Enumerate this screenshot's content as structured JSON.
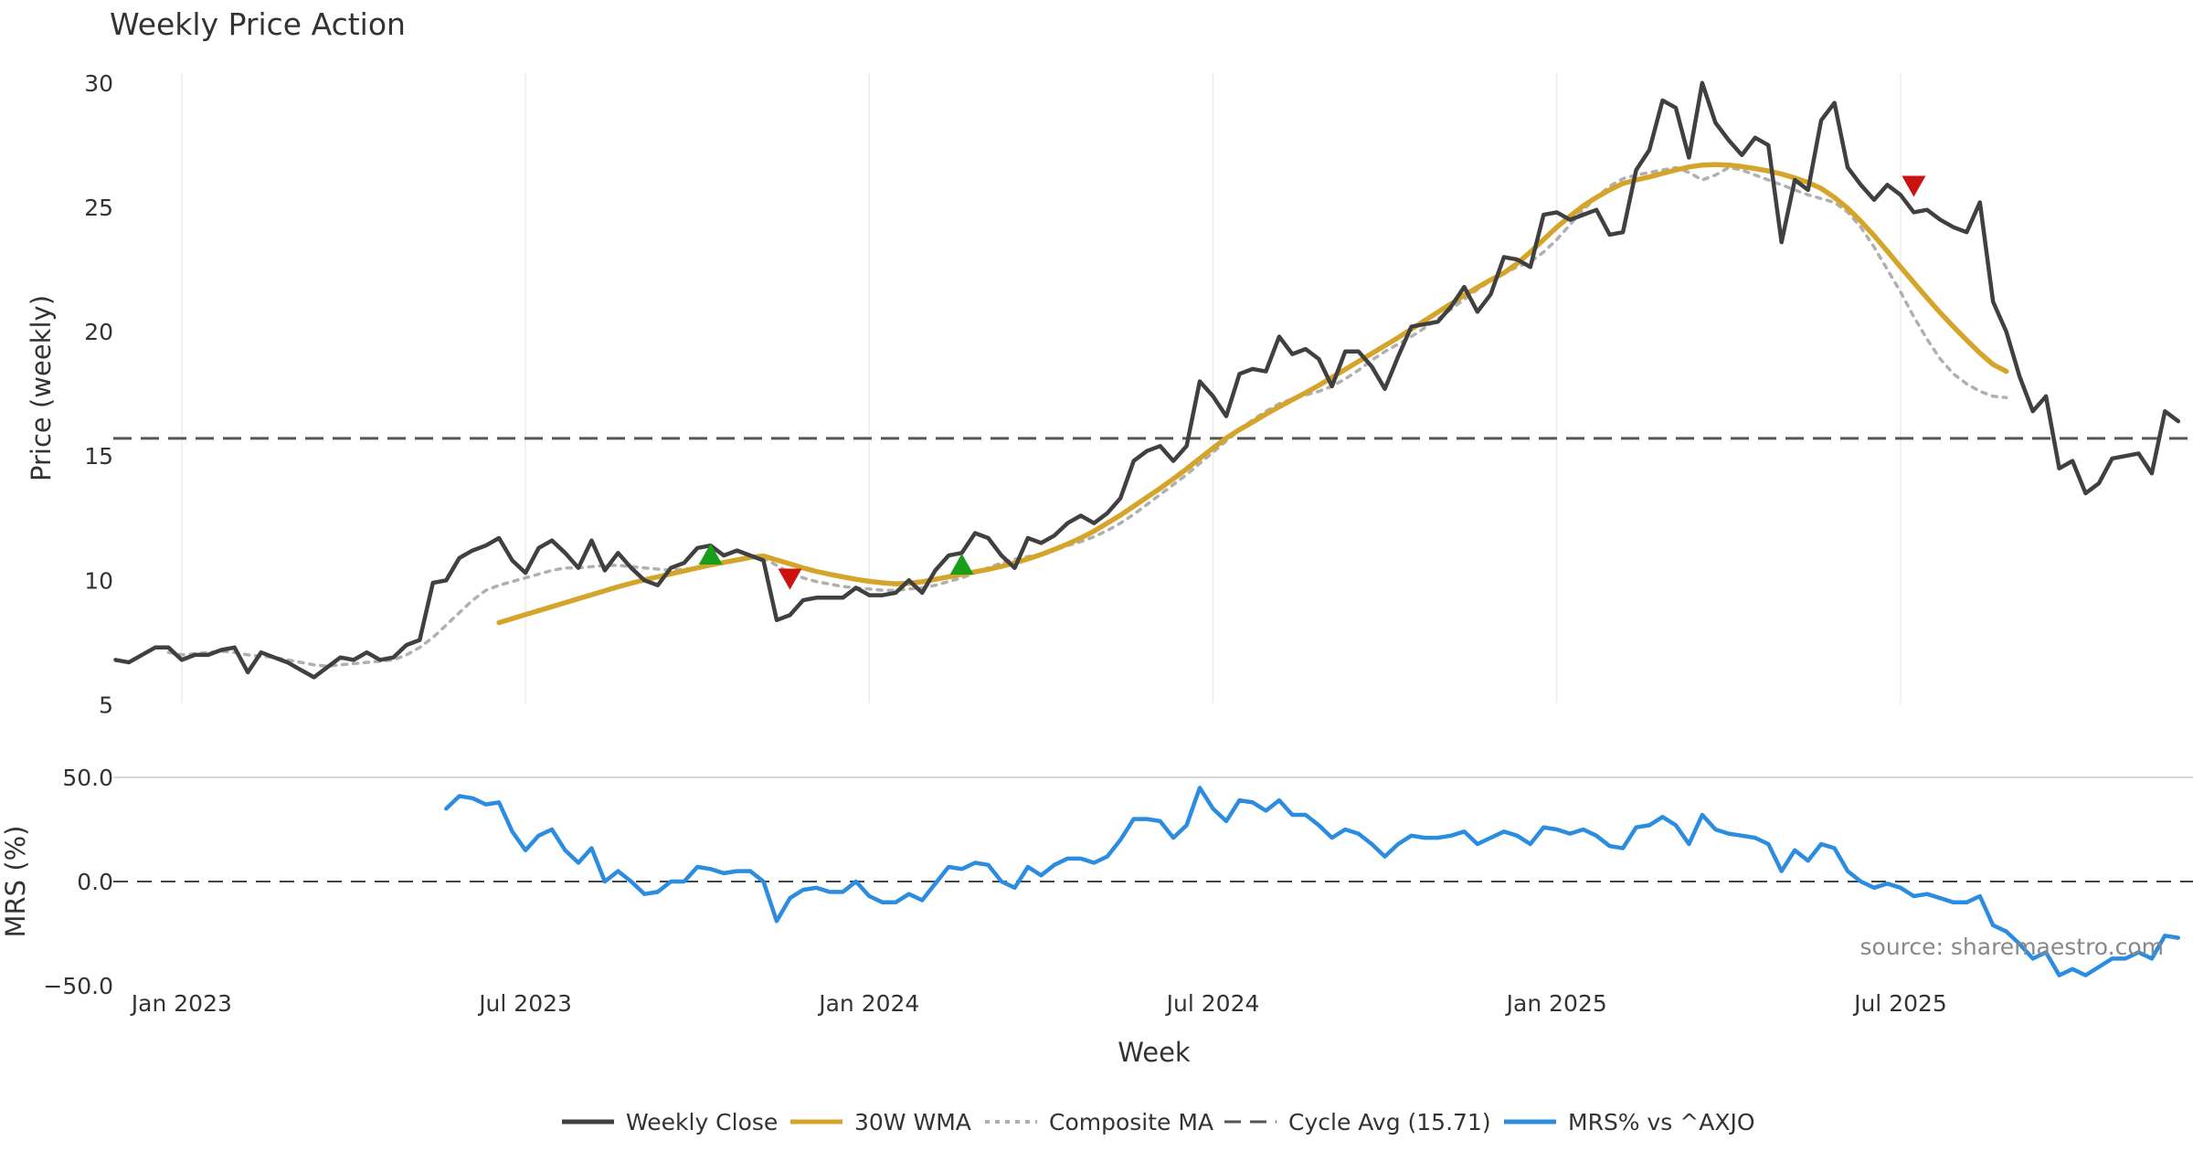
{
  "chart_data": {
    "type": "line",
    "title": "Weekly Price Action",
    "xlabel": "Week",
    "source": "source: sharemaestro.com",
    "x_ticks": [
      "Jan 2023",
      "Jul 2023",
      "Jan 2024",
      "Jul 2024",
      "Jan 2025",
      "Jul 2025"
    ],
    "x_tick_index": [
      5,
      31,
      57,
      83,
      109,
      135
    ],
    "price_panel": {
      "ylabel": "Price (weekly)",
      "ylim": [
        4.5,
        31.5
      ],
      "y_ticks": [
        "5",
        "10",
        "15",
        "20",
        "25",
        "30"
      ],
      "y_tick_values": [
        5,
        10,
        15,
        20,
        25,
        30
      ],
      "cycle_avg": 15.71,
      "series": [
        {
          "name": "Weekly Close",
          "color": "#404040",
          "start": 0,
          "values": [
            6.8,
            6.7,
            7.0,
            7.3,
            7.3,
            6.8,
            7.0,
            7.0,
            7.2,
            7.3,
            6.3,
            7.1,
            6.9,
            6.7,
            6.4,
            6.1,
            6.5,
            6.9,
            6.8,
            7.1,
            6.8,
            6.9,
            7.4,
            7.6,
            9.9,
            10.0,
            10.9,
            11.2,
            11.4,
            11.7,
            10.8,
            10.3,
            11.3,
            11.6,
            11.1,
            10.5,
            11.6,
            10.4,
            11.1,
            10.5,
            10.0,
            9.8,
            10.5,
            10.7,
            11.3,
            11.4,
            11.0,
            11.2,
            11.0,
            10.8,
            8.4,
            8.6,
            9.2,
            9.3,
            9.3,
            9.3,
            9.7,
            9.4,
            9.4,
            9.5,
            10.0,
            9.5,
            10.4,
            11.0,
            11.1,
            11.9,
            11.7,
            11.0,
            10.5,
            11.7,
            11.5,
            11.8,
            12.3,
            12.6,
            12.3,
            12.7,
            13.3,
            14.8,
            15.2,
            15.4,
            14.8,
            15.4,
            18.0,
            17.4,
            16.6,
            18.3,
            18.5,
            18.4,
            19.8,
            19.1,
            19.3,
            18.9,
            17.8,
            19.2,
            19.2,
            18.6,
            17.7,
            19.0,
            20.2,
            20.3,
            20.4,
            21.0,
            21.8,
            20.8,
            21.5,
            23.0,
            22.9,
            22.6,
            24.7,
            24.8,
            24.5,
            24.7,
            24.9,
            23.9,
            24.0,
            26.5,
            27.3,
            29.3,
            29.0,
            27.0,
            30.0,
            28.4,
            27.7,
            27.1,
            27.8,
            27.5,
            23.6,
            26.1,
            25.7,
            28.5,
            29.2,
            26.6,
            25.9,
            25.3,
            25.9,
            25.5,
            24.8,
            24.9,
            24.5,
            24.2,
            24.0,
            25.2,
            21.2,
            20.0,
            18.2,
            16.8,
            17.4,
            14.5,
            14.8,
            13.5,
            13.9,
            14.9,
            15.0,
            15.1,
            14.3,
            16.8,
            16.4
          ]
        },
        {
          "name": "30W WMA",
          "color": "#d4a52a",
          "start": 29,
          "values": [
            8.3,
            8.46,
            8.62,
            8.78,
            8.94,
            9.1,
            9.26,
            9.42,
            9.58,
            9.74,
            9.88,
            10.02,
            10.14,
            10.26,
            10.38,
            10.5,
            10.62,
            10.72,
            10.82,
            10.92,
            10.98,
            10.82,
            10.66,
            10.5,
            10.36,
            10.24,
            10.14,
            10.04,
            9.96,
            9.9,
            9.86,
            9.88,
            9.94,
            10.04,
            10.14,
            10.24,
            10.34,
            10.44,
            10.56,
            10.7,
            10.86,
            11.04,
            11.24,
            11.46,
            11.7,
            11.98,
            12.3,
            12.62,
            12.98,
            13.34,
            13.7,
            14.08,
            14.48,
            14.9,
            15.32,
            15.72,
            16.06,
            16.36,
            16.68,
            16.98,
            17.26,
            17.54,
            17.84,
            18.16,
            18.48,
            18.8,
            19.12,
            19.44,
            19.76,
            20.1,
            20.44,
            20.78,
            21.12,
            21.46,
            21.78,
            22.08,
            22.36,
            22.74,
            23.2,
            23.7,
            24.2,
            24.64,
            25.06,
            25.4,
            25.7,
            25.96,
            26.1,
            26.22,
            26.36,
            26.5,
            26.62,
            26.7,
            26.72,
            26.7,
            26.64,
            26.56,
            26.46,
            26.34,
            26.18,
            26.0,
            25.76,
            25.4,
            24.96,
            24.44,
            23.86,
            23.24,
            22.6,
            21.98,
            21.36,
            20.76,
            20.2,
            19.66,
            19.14,
            18.68,
            18.4
          ]
        },
        {
          "name": "Composite MA",
          "color": "#b0b0b0",
          "start": 4,
          "values": [
            7.1,
            7.0,
            7.05,
            7.1,
            7.15,
            7.1,
            7.0,
            6.95,
            6.9,
            6.8,
            6.7,
            6.6,
            6.55,
            6.6,
            6.65,
            6.7,
            6.75,
            6.8,
            7.0,
            7.3,
            7.7,
            8.2,
            8.7,
            9.2,
            9.6,
            9.8,
            9.95,
            10.1,
            10.25,
            10.4,
            10.5,
            10.5,
            10.55,
            10.6,
            10.6,
            10.55,
            10.5,
            10.45,
            10.4,
            10.45,
            10.5,
            10.6,
            10.75,
            10.85,
            10.9,
            10.9,
            10.6,
            10.3,
            10.1,
            9.95,
            9.85,
            9.75,
            9.7,
            9.65,
            9.6,
            9.6,
            9.65,
            9.7,
            9.8,
            9.95,
            10.1,
            10.3,
            10.5,
            10.7,
            10.85,
            10.95,
            11.05,
            11.2,
            11.4,
            11.55,
            11.75,
            12.0,
            12.3,
            12.65,
            13.05,
            13.45,
            13.85,
            14.25,
            14.7,
            15.15,
            15.6,
            16.05,
            16.45,
            16.8,
            17.1,
            17.3,
            17.45,
            17.6,
            17.8,
            18.1,
            18.45,
            18.85,
            19.2,
            19.5,
            19.8,
            20.15,
            20.5,
            20.9,
            21.3,
            21.7,
            22.05,
            22.35,
            22.6,
            22.8,
            23.2,
            23.7,
            24.3,
            24.9,
            25.4,
            25.85,
            26.15,
            26.3,
            26.4,
            26.5,
            26.6,
            26.4,
            26.1,
            26.3,
            26.6,
            26.5,
            26.3,
            26.1,
            25.9,
            25.7,
            25.5,
            25.35,
            25.2,
            24.8,
            24.2,
            23.4,
            22.5,
            21.6,
            20.6,
            19.7,
            18.9,
            18.3,
            17.9,
            17.6,
            17.4,
            17.35
          ]
        }
      ],
      "buy_signals": [
        [
          45,
          11.0
        ],
        [
          64,
          10.6
        ]
      ],
      "sell_signals": [
        [
          51,
          10.1
        ],
        [
          136,
          25.9
        ]
      ],
      "signal_colors": {
        "buy": "#1a9e1a",
        "sell": "#cc1111"
      }
    },
    "mrs_panel": {
      "ylabel": "MRS (%)",
      "ylim": [
        -50,
        50
      ],
      "y_ticks": [
        "50.0",
        "0.0",
        "−50.0"
      ],
      "y_tick_values": [
        50,
        0,
        -50
      ],
      "series": [
        {
          "name": "MRS% vs ^AXJO",
          "color": "#2b8ce0",
          "start": 25,
          "values": [
            35,
            41,
            40,
            37,
            38,
            24,
            15,
            22,
            25,
            15,
            9,
            16,
            0,
            5,
            0,
            -6,
            -5,
            0,
            0,
            7,
            6,
            4,
            5,
            5,
            0,
            -19,
            -8,
            -4,
            -3,
            -5,
            -5,
            0,
            -7,
            -10,
            -10,
            -6,
            -9,
            -1,
            7,
            6,
            9,
            8,
            0,
            -3,
            7,
            3,
            8,
            11,
            11,
            9,
            12,
            20,
            30,
            30,
            29,
            21,
            27,
            45,
            35,
            29,
            39,
            38,
            34,
            39,
            32,
            32,
            27,
            21,
            25,
            23,
            18,
            12,
            18,
            22,
            21,
            21,
            22,
            24,
            18,
            21,
            24,
            22,
            18,
            26,
            25,
            23,
            25,
            22,
            17,
            16,
            26,
            27,
            31,
            27,
            18,
            32,
            25,
            23,
            22,
            21,
            18,
            5,
            15,
            10,
            18,
            16,
            5,
            0,
            -3,
            -1,
            -3,
            -7,
            -6,
            -8,
            -10,
            -10,
            -7,
            -21,
            -24,
            -30,
            -37,
            -34,
            -45,
            -42,
            -45,
            -41,
            -37,
            -37,
            -34,
            -37,
            -26,
            -27
          ]
        }
      ]
    },
    "legend": {
      "position": "bottom-center",
      "entries": [
        {
          "label": "Weekly Close",
          "color": "#404040",
          "style": "solid"
        },
        {
          "label": "30W WMA",
          "color": "#d4a52a",
          "style": "solid"
        },
        {
          "label": "Composite MA",
          "color": "#b0b0b0",
          "style": "dotted"
        },
        {
          "label": "Cycle Avg (15.71)",
          "color": "#555555",
          "style": "dashed"
        },
        {
          "label": "MRS% vs ^AXJO",
          "color": "#2b8ce0",
          "style": "solid"
        }
      ]
    }
  }
}
